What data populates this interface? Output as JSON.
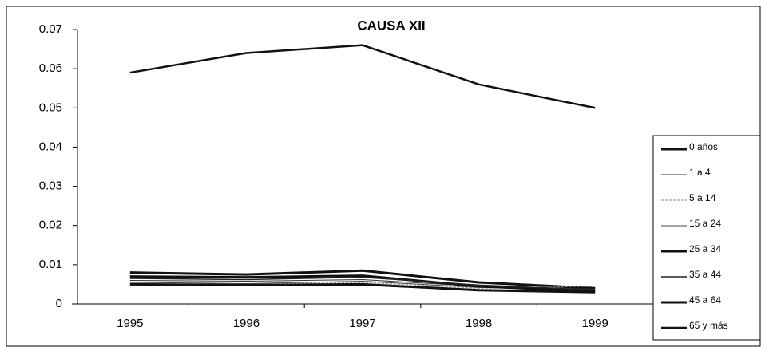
{
  "chart_data": {
    "type": "line",
    "title": "CAUSA XII",
    "categories": [
      "1995",
      "1996",
      "1997",
      "1998",
      "1999"
    ],
    "series": [
      {
        "name": "0 años",
        "color": "#111111",
        "width": 3,
        "values": [
          0.008,
          0.0075,
          0.0085,
          0.0055,
          0.004
        ]
      },
      {
        "name": "1 a  4",
        "color": "#333333",
        "width": 1,
        "values": [
          0.006,
          0.0058,
          0.0062,
          0.0045,
          0.0035
        ]
      },
      {
        "name": "5 a 14",
        "color": "#888888",
        "width": 1,
        "dash": true,
        "values": [
          0.0052,
          0.005,
          0.0055,
          0.004,
          0.0045
        ]
      },
      {
        "name": "15 a 24",
        "color": "#444444",
        "width": 1,
        "values": [
          0.0055,
          0.0052,
          0.0058,
          0.0042,
          0.0038
        ]
      },
      {
        "name": "25 a 34",
        "color": "#111111",
        "width": 3,
        "values": [
          0.007,
          0.0068,
          0.0072,
          0.0045,
          0.0032
        ]
      },
      {
        "name": "35 a 44",
        "color": "#222222",
        "width": 1.5,
        "values": [
          0.0065,
          0.0062,
          0.0068,
          0.0048,
          0.0036
        ]
      },
      {
        "name": "45 a 64",
        "color": "#111111",
        "width": 3,
        "values": [
          0.005,
          0.0048,
          0.005,
          0.0035,
          0.003
        ]
      },
      {
        "name": "65 y más",
        "color": "#111111",
        "width": 2.5,
        "values": [
          0.059,
          0.064,
          0.066,
          0.056,
          0.05
        ]
      }
    ],
    "ylim": [
      0,
      0.07
    ],
    "yticks": [
      0,
      0.01,
      0.02,
      0.03,
      0.04,
      0.05,
      0.06,
      0.07
    ],
    "grid": false,
    "legend": "right"
  }
}
